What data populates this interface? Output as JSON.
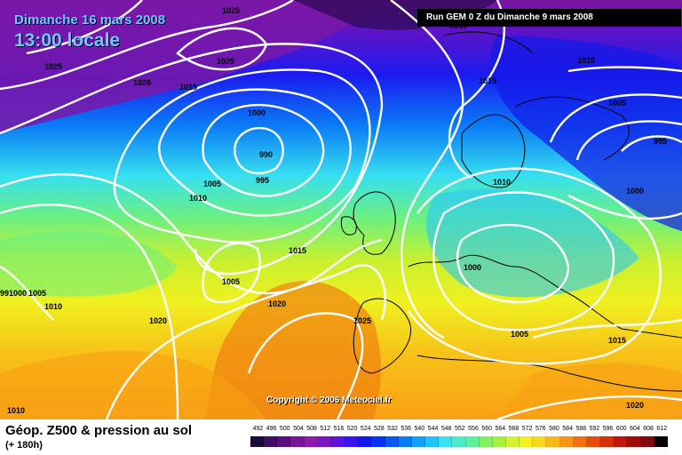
{
  "header": {
    "date": "Dimanche 16 mars 2008",
    "time": "13:00 locale",
    "run": "Run GEM 0 Z du Dimanche 9 mars 2008"
  },
  "copyright": "Copyright © 2006 Meteociel.fr",
  "footer": {
    "title": "Géop. Z500 & pression au sol",
    "subtitle": "(+ 180h)"
  },
  "scale": {
    "values": [
      "492",
      "496",
      "500",
      "504",
      "508",
      "512",
      "516",
      "520",
      "524",
      "528",
      "532",
      "536",
      "540",
      "544",
      "548",
      "552",
      "556",
      "560",
      "564",
      "568",
      "572",
      "576",
      "580",
      "584",
      "588",
      "592",
      "596",
      "600",
      "604",
      "608",
      "612"
    ],
    "colors": [
      "#1a0a3a",
      "#3c0f66",
      "#5a1080",
      "#7a1496",
      "#8f1aa8",
      "#7a16c8",
      "#5a14e0",
      "#3a14ef",
      "#1418f0",
      "#0a32f2",
      "#0a58f4",
      "#0a7cf6",
      "#12a0f8",
      "#1ec4f8",
      "#38e0f0",
      "#4cecc8",
      "#5cf098",
      "#80f060",
      "#a8f040",
      "#d4f030",
      "#f0f020",
      "#f8d81c",
      "#f8b818",
      "#f89414",
      "#f07010",
      "#e84c0c",
      "#d8300a",
      "#c01808",
      "#a00c08",
      "#800808",
      "#000000"
    ]
  },
  "isobars": [
    {
      "label": "1025",
      "id": "iso-1025-top"
    },
    {
      "label": "1020",
      "id": "iso-1020-nw"
    },
    {
      "label": "1025",
      "id": "iso-1025-w"
    },
    {
      "label": "1015",
      "id": "iso-1015-n"
    },
    {
      "label": "1025",
      "id": "iso-1025-c"
    },
    {
      "label": "1010",
      "id": "iso-1010-n"
    },
    {
      "label": "1000",
      "id": "iso-1000"
    },
    {
      "label": "990",
      "id": "iso-990"
    },
    {
      "label": "995",
      "id": "iso-995"
    },
    {
      "label": "1005",
      "id": "iso-1005"
    },
    {
      "label": "1010",
      "id": "iso-1010-w"
    },
    {
      "label": "1015",
      "id": "iso-1015-ne"
    },
    {
      "label": "1015",
      "id": "iso-1015-nne"
    },
    {
      "label": "1005",
      "id": "iso-1005-ne"
    },
    {
      "label": "995",
      "id": "iso-995-ne"
    },
    {
      "label": "1000",
      "id": "iso-1000-ne"
    },
    {
      "label": "1010",
      "id": "iso-1010-e"
    },
    {
      "label": "1015",
      "id": "iso-1015-c"
    },
    {
      "label": "1005",
      "id": "iso-1005-c"
    },
    {
      "label": "1000",
      "id": "iso-1000-c"
    },
    {
      "label": "1020",
      "id": "iso-1020-c"
    },
    {
      "label": "1025",
      "id": "iso-1025-s"
    },
    {
      "label": "1005",
      "id": "iso-1005-s"
    },
    {
      "label": "1020",
      "id": "iso-1020-sw"
    },
    {
      "label": "1015",
      "id": "iso-1015-se"
    },
    {
      "label": "1020",
      "id": "iso-1020-se"
    },
    {
      "label": "1010",
      "id": "iso-1010-sw"
    },
    {
      "label": "99",
      "id": "iso-99-w"
    },
    {
      "label": "1000",
      "id": "iso-1000-w"
    },
    {
      "label": "1005",
      "id": "iso-1005-w"
    },
    {
      "label": "1010",
      "id": "iso-1010-ww"
    }
  ]
}
